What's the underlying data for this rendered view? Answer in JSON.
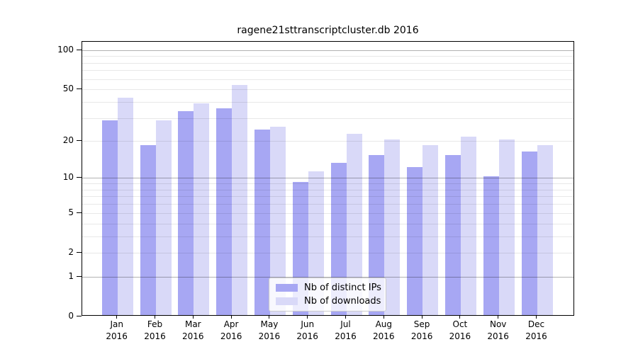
{
  "chart_data": {
    "type": "bar",
    "title": "ragene21sttranscriptcluster.db 2016",
    "categories": [
      {
        "month": "Jan",
        "year": "2016"
      },
      {
        "month": "Feb",
        "year": "2016"
      },
      {
        "month": "Mar",
        "year": "2016"
      },
      {
        "month": "Apr",
        "year": "2016"
      },
      {
        "month": "May",
        "year": "2016"
      },
      {
        "month": "Jun",
        "year": "2016"
      },
      {
        "month": "Jul",
        "year": "2016"
      },
      {
        "month": "Aug",
        "year": "2016"
      },
      {
        "month": "Sep",
        "year": "2016"
      },
      {
        "month": "Oct",
        "year": "2016"
      },
      {
        "month": "Nov",
        "year": "2016"
      },
      {
        "month": "Dec",
        "year": "2016"
      }
    ],
    "series": [
      {
        "name": "Nb of distinct IPs",
        "color": "#a7a7f3",
        "values": [
          28,
          18,
          33,
          35,
          24,
          9,
          13,
          15,
          12,
          15,
          10,
          16
        ]
      },
      {
        "name": "Nb of downloads",
        "color": "#d9d9f8",
        "values": [
          42,
          28,
          38,
          53,
          25,
          11,
          22,
          20,
          18,
          21,
          20,
          18
        ]
      }
    ],
    "xlabel": "",
    "ylabel": "",
    "yscale": "log1p",
    "ylim": [
      0,
      115
    ],
    "yticks": [
      0,
      1,
      2,
      5,
      10,
      20,
      50,
      100
    ],
    "minor_gridlines": [
      2,
      3,
      4,
      5,
      6,
      7,
      8,
      9,
      20,
      30,
      40,
      50,
      60,
      70,
      80,
      90
    ],
    "major_gridlines": [
      1,
      10,
      100
    ],
    "grid": "on",
    "gridlines_over_bars": true,
    "legend_position": "bottom-center"
  }
}
